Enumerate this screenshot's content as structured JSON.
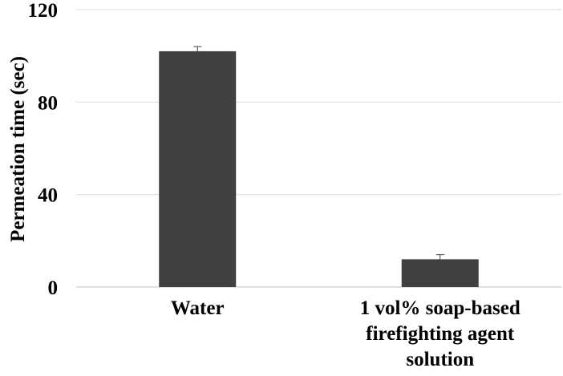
{
  "chart_data": {
    "type": "bar",
    "title": "",
    "xlabel": "",
    "ylabel": "Permeation time (sec)",
    "categories": [
      [
        "Water"
      ],
      [
        "1 vol% soap-based",
        "firefighting agent",
        "solution"
      ]
    ],
    "values": [
      102,
      12
    ],
    "error": [
      2,
      2
    ],
    "ylim": [
      0,
      120
    ],
    "yticks": [
      0,
      40,
      80,
      120
    ],
    "grid": true,
    "legend": "none",
    "colors": {
      "bar": "#404040",
      "grid": "#d9d9d9",
      "error_bar": "#404040"
    }
  }
}
